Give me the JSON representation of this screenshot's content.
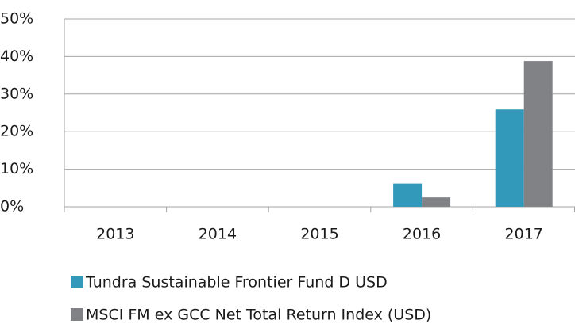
{
  "chart_data": {
    "type": "bar",
    "categories": [
      "2013",
      "2014",
      "2015",
      "2016",
      "2017"
    ],
    "series": [
      {
        "name": "Tundra Sustainable Frontier Fund D USD",
        "color": "#3399bb",
        "values": [
          null,
          null,
          null,
          6.2,
          25.9
        ]
      },
      {
        "name": "MSCI FM ex GCC Net Total Return Index (USD)",
        "color": "#808285",
        "values": [
          null,
          null,
          null,
          2.5,
          38.8
        ]
      }
    ],
    "ylim": [
      0,
      50
    ],
    "yticks": [
      {
        "value": 0,
        "label": "0%"
      },
      {
        "value": 10,
        "label": "10%"
      },
      {
        "value": 20,
        "label": "20%"
      },
      {
        "value": 30,
        "label": "30%"
      },
      {
        "value": 40,
        "label": "40%"
      },
      {
        "value": 50,
        "label": "50%"
      }
    ],
    "grid": true,
    "legend": "bottom"
  }
}
